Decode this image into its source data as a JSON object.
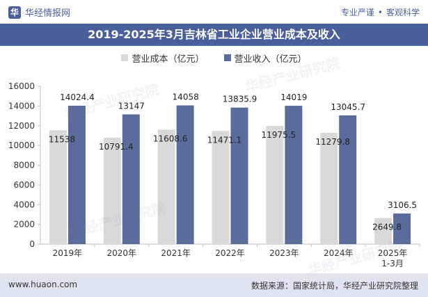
{
  "header": {
    "brand": "华经情报网",
    "brand_logo": "华",
    "tag1": "专业严谨",
    "separator": "•",
    "tag2": "客观科学"
  },
  "watermark": "华经产业研究院",
  "footer": {
    "website": "www.huaon.com",
    "source": "数据来源：国家统计局，华经产业研究院整理"
  },
  "colors": {
    "cost": "#d9d9d9",
    "revenue": "#5b6b9b",
    "accent": "#4a5f9a"
  },
  "chart_data": {
    "type": "bar",
    "title": "2019-2025年3月吉林省工业企业营业成本及收入",
    "categories": [
      "2019年",
      "2020年",
      "2021年",
      "2022年",
      "2023年",
      "2024年",
      "2025年\n1-3月"
    ],
    "series": [
      {
        "name": "营业成本（亿元）",
        "values": [
          11538,
          10791.4,
          11608.6,
          11471.1,
          11975.5,
          11279.8,
          2649.8
        ]
      },
      {
        "name": "营业收入（亿元）",
        "values": [
          14024.4,
          13147,
          14058,
          13835.9,
          14019,
          13045.7,
          3106.5
        ]
      }
    ],
    "value_labels": [
      [
        "11538",
        "10791.4",
        "11608.6",
        "11471.1",
        "11975.5",
        "11279.8",
        "2649.8"
      ],
      [
        "14024.4",
        "13147",
        "14058",
        "13835.9",
        "14019",
        "13045.7",
        "3106.5"
      ]
    ],
    "ylim": [
      0,
      16000
    ],
    "yticks": [
      0,
      2000,
      4000,
      6000,
      8000,
      10000,
      12000,
      14000,
      16000
    ],
    "xlabel": "",
    "ylabel": ""
  }
}
